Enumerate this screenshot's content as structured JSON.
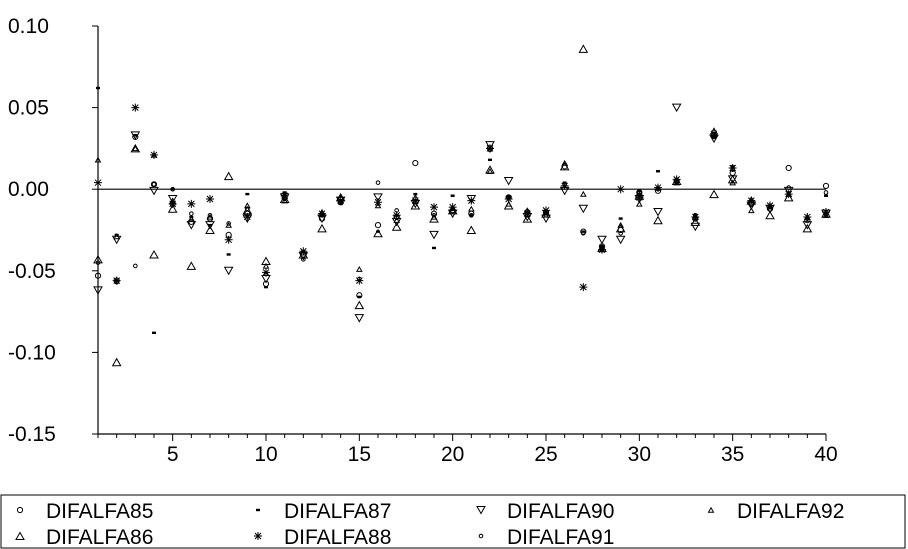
{
  "chart_data": {
    "type": "scatter",
    "title": "",
    "xlabel": "",
    "ylabel": "",
    "xlim": [
      1,
      40
    ],
    "ylim": [
      -0.15,
      0.1
    ],
    "x_ticks": [
      5,
      10,
      15,
      20,
      25,
      30,
      35,
      40
    ],
    "y_ticks": [
      0.1,
      0.05,
      0.0,
      -0.05,
      -0.1,
      -0.15
    ],
    "y_tick_labels": [
      "0.10",
      "0.05",
      "0.00",
      "-0.05",
      "-0.10",
      "-0.15"
    ],
    "x_tick_labels": [
      "5",
      "10",
      "15",
      "20",
      "25",
      "30",
      "35",
      "40"
    ],
    "zero_line": true,
    "grid": false,
    "legend_position": "bottom",
    "legend": [
      {
        "label": "DIFALFA85",
        "marker": "small-circle"
      },
      {
        "label": "DIFALFA87",
        "marker": "small-bar"
      },
      {
        "label": "DIFALFA90",
        "marker": "triangle-down"
      },
      {
        "label": "DIFALFA92",
        "marker": "small-triangle"
      },
      {
        "label": "DIFALFA86",
        "marker": "triangle-up"
      },
      {
        "label": "DIFALFA88",
        "marker": "asterisk"
      },
      {
        "label": "DIFALFA91",
        "marker": "tiny-circle"
      }
    ],
    "series": [
      {
        "name": "DIFALFA85",
        "marker": "small-circle",
        "values": [
          -0.053,
          -0.056,
          0.032,
          0.003,
          -0.009,
          -0.02,
          -0.018,
          -0.028,
          -0.015,
          -0.058,
          -0.005,
          -0.04,
          -0.018,
          -0.008,
          -0.065,
          -0.022,
          -0.017,
          0.016,
          -0.015,
          -0.013,
          -0.015,
          0.025,
          -0.005,
          -0.014,
          -0.014,
          0.014,
          -0.026,
          -0.035,
          -0.025,
          -0.002,
          -0.001,
          0.005,
          -0.018,
          0.033,
          0.01,
          -0.009,
          -0.012,
          0.013,
          -0.019,
          0.002
        ]
      },
      {
        "name": "DIFALFA87",
        "marker": "small-bar",
        "values": [
          0.062,
          -0.028,
          0.033,
          -0.088,
          0.0,
          -0.017,
          -0.022,
          -0.04,
          -0.003,
          -0.06,
          -0.002,
          -0.038,
          -0.016,
          -0.009,
          -0.066,
          -0.026,
          -0.016,
          -0.003,
          -0.036,
          -0.004,
          -0.016,
          0.018,
          -0.005,
          -0.014,
          -0.014,
          0.004,
          -0.026,
          -0.035,
          -0.018,
          -0.001,
          0.011,
          0.006,
          -0.016,
          0.032,
          0.014,
          -0.007,
          -0.011,
          -0.002,
          -0.018,
          -0.004
        ]
      },
      {
        "name": "DIFALFA90",
        "marker": "triangle-down",
        "values": [
          -0.062,
          -0.031,
          0.033,
          -0.001,
          -0.006,
          -0.022,
          -0.022,
          -0.05,
          -0.018,
          -0.055,
          -0.005,
          -0.041,
          -0.018,
          -0.007,
          -0.079,
          -0.005,
          -0.02,
          -0.009,
          -0.028,
          -0.015,
          -0.006,
          0.027,
          0.005,
          -0.017,
          -0.018,
          -0.001,
          -0.012,
          -0.031,
          -0.031,
          -0.006,
          -0.014,
          0.05,
          -0.023,
          0.031,
          0.006,
          -0.01,
          -0.012,
          -0.001,
          -0.022,
          -0.015
        ]
      },
      {
        "name": "DIFALFA92",
        "marker": "small-triangle",
        "values": [
          0.018,
          -0.029,
          0.025,
          0.021,
          -0.007,
          -0.018,
          -0.017,
          -0.022,
          -0.01,
          -0.047,
          -0.007,
          -0.039,
          -0.014,
          -0.005,
          -0.049,
          -0.01,
          -0.019,
          -0.005,
          -0.017,
          -0.013,
          -0.012,
          0.011,
          -0.009,
          -0.013,
          -0.014,
          0.016,
          -0.003,
          -0.037,
          -0.022,
          -0.009,
          0.001,
          0.004,
          -0.017,
          0.036,
          0.004,
          -0.013,
          -0.01,
          -0.003,
          -0.017,
          -0.016
        ]
      },
      {
        "name": "DIFALFA86",
        "marker": "triangle-up",
        "values": [
          -0.043,
          -0.106,
          0.025,
          -0.04,
          -0.012,
          -0.047,
          -0.025,
          0.008,
          -0.013,
          -0.044,
          -0.006,
          -0.04,
          -0.024,
          -0.005,
          -0.071,
          -0.027,
          -0.023,
          -0.01,
          -0.018,
          -0.013,
          -0.025,
          0.012,
          -0.01,
          -0.018,
          -0.015,
          0.014,
          0.086,
          -0.036,
          -0.024,
          -0.004,
          -0.019,
          0.005,
          -0.02,
          -0.003,
          0.006,
          -0.007,
          -0.016,
          -0.005,
          -0.024,
          -0.015
        ]
      },
      {
        "name": "DIFALFA88",
        "marker": "asterisk",
        "values": [
          0.004,
          -0.056,
          0.05,
          0.021,
          -0.009,
          -0.009,
          -0.006,
          -0.031,
          -0.017,
          -0.051,
          -0.004,
          -0.038,
          -0.015,
          -0.007,
          -0.056,
          -0.008,
          -0.016,
          -0.007,
          -0.011,
          -0.011,
          -0.007,
          0.025,
          -0.006,
          -0.015,
          -0.013,
          0.002,
          -0.06,
          -0.037,
          0.0,
          -0.005,
          0.001,
          0.006,
          -0.017,
          0.034,
          0.013,
          -0.007,
          -0.01,
          -0.003,
          -0.017,
          -0.014
        ]
      },
      {
        "name": "DIFALFA91",
        "marker": "tiny-circle",
        "values": [
          -0.045,
          -0.057,
          -0.047,
          0.003,
          0.0,
          -0.015,
          -0.016,
          -0.021,
          -0.012,
          -0.052,
          -0.006,
          -0.043,
          -0.016,
          -0.008,
          -0.055,
          0.004,
          -0.013,
          -0.008,
          -0.016,
          -0.012,
          -0.016,
          0.024,
          -0.005,
          -0.016,
          -0.016,
          0.003,
          -0.027,
          -0.037,
          -0.027,
          -0.002,
          0.0,
          0.005,
          -0.016,
          0.032,
          0.012,
          -0.009,
          -0.011,
          0.001,
          -0.018,
          -0.002
        ]
      }
    ]
  }
}
